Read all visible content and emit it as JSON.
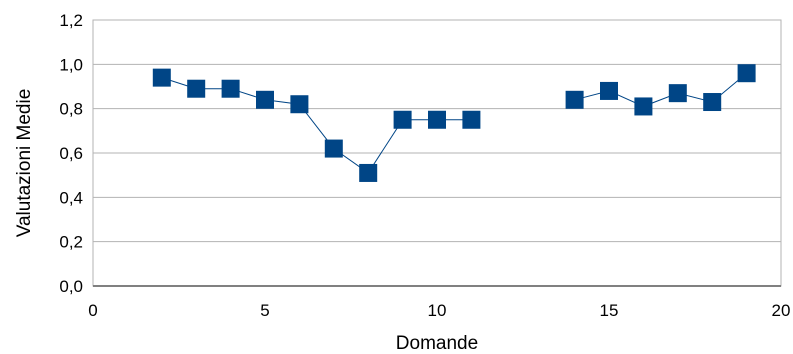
{
  "chart_data": {
    "type": "line",
    "xlabel": "Domande",
    "ylabel": "Valutazioni Medie",
    "xlim": [
      0,
      20
    ],
    "ylim": [
      0,
      1.2
    ],
    "x_ticks": [
      0,
      5,
      10,
      15,
      20
    ],
    "y_ticks": [
      0,
      0.2,
      0.4,
      0.6,
      0.8,
      1.0,
      1.2
    ],
    "x_tick_labels": [
      "0",
      "5",
      "10",
      "15",
      "20"
    ],
    "y_tick_labels": [
      "0,0",
      "0,2",
      "0,4",
      "0,6",
      "0,8",
      "1,0",
      "1,2"
    ],
    "grid": {
      "horizontal": true,
      "vertical": false
    },
    "marker": "square",
    "colors": {
      "series": "#004586",
      "grid": "#b3b3b3",
      "axis": "#808080"
    },
    "series": [
      {
        "segments": [
          [
            {
              "x": 2,
              "y": 0.94
            },
            {
              "x": 3,
              "y": 0.89
            },
            {
              "x": 4,
              "y": 0.89
            },
            {
              "x": 5,
              "y": 0.84
            },
            {
              "x": 6,
              "y": 0.82
            },
            {
              "x": 7,
              "y": 0.62
            },
            {
              "x": 8,
              "y": 0.51
            },
            {
              "x": 9,
              "y": 0.75
            },
            {
              "x": 10,
              "y": 0.75
            },
            {
              "x": 11,
              "y": 0.75
            }
          ],
          [
            {
              "x": 14,
              "y": 0.84
            },
            {
              "x": 15,
              "y": 0.88
            },
            {
              "x": 16,
              "y": 0.81
            },
            {
              "x": 17,
              "y": 0.87
            },
            {
              "x": 18,
              "y": 0.83
            },
            {
              "x": 19,
              "y": 0.96
            }
          ]
        ]
      }
    ]
  }
}
